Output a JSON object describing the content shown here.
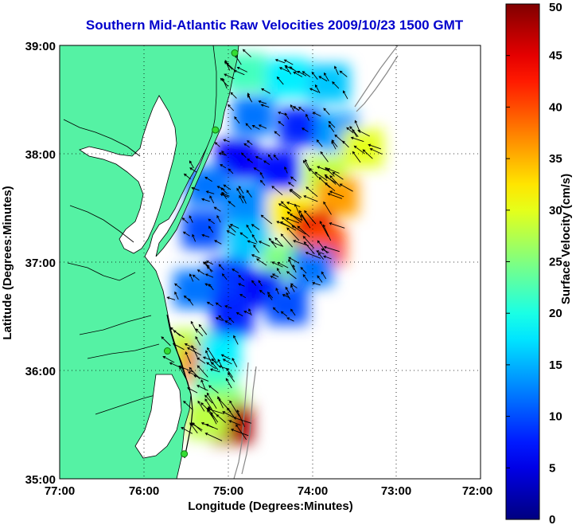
{
  "title": "Southern Mid-Atlantic Raw Velocities 2009/10/23 1500 GMT",
  "x_axis": {
    "label": "Longitude (Degrees:Minutes)",
    "ticks": [
      "77:00",
      "76:00",
      "75:00",
      "74:00",
      "73:00",
      "72:00"
    ],
    "range": [
      -77,
      -72
    ]
  },
  "y_axis": {
    "label": "Latitude (Degrees:Minutes)",
    "ticks": [
      "39:00",
      "38:00",
      "37:00",
      "36:00",
      "35:00"
    ],
    "range": [
      35,
      39
    ]
  },
  "colorbar": {
    "label": "Surface Velocity (cm/s)",
    "ticks": [
      "50",
      "45",
      "40",
      "35",
      "30",
      "25",
      "20",
      "15",
      "10",
      "5",
      "0"
    ],
    "range": [
      0,
      50
    ],
    "colormap": "jet"
  },
  "colors": {
    "land": "#55f2a4",
    "water": "#ffffff",
    "coastline": "#000000",
    "bathymetry": "#888888",
    "station": "#33dd33",
    "title": "#0000cc"
  },
  "grid": "dotted",
  "chart_data": {
    "type": "heatmap",
    "title": "Southern Mid-Atlantic Raw Velocities 2009/10/23 1500 GMT",
    "xlabel": "Longitude (Degrees:Minutes)",
    "ylabel": "Latitude (Degrees:Minutes)",
    "xlim": [
      -77,
      -72
    ],
    "ylim": [
      35,
      39
    ],
    "value_label": "Surface Velocity (cm/s)",
    "value_range": [
      0,
      50
    ],
    "stations": [
      {
        "lon": -74.92,
        "lat": 38.93
      },
      {
        "lon": -75.15,
        "lat": 38.22
      },
      {
        "lon": -75.72,
        "lat": 36.18
      },
      {
        "lon": -75.52,
        "lat": 35.23
      }
    ],
    "field_samples": [
      {
        "lon": -74.8,
        "lat": 38.75,
        "speed": 22
      },
      {
        "lon": -74.3,
        "lat": 38.7,
        "speed": 18
      },
      {
        "lon": -73.8,
        "lat": 38.65,
        "speed": 16
      },
      {
        "lon": -74.7,
        "lat": 38.35,
        "speed": 12
      },
      {
        "lon": -74.15,
        "lat": 38.25,
        "speed": 8
      },
      {
        "lon": -73.7,
        "lat": 38.2,
        "speed": 14
      },
      {
        "lon": -73.4,
        "lat": 38.05,
        "speed": 30
      },
      {
        "lon": -74.9,
        "lat": 37.95,
        "speed": 6
      },
      {
        "lon": -74.4,
        "lat": 37.85,
        "speed": 7
      },
      {
        "lon": -73.85,
        "lat": 37.8,
        "speed": 28
      },
      {
        "lon": -73.7,
        "lat": 37.6,
        "speed": 36
      },
      {
        "lon": -75.25,
        "lat": 37.7,
        "speed": 12
      },
      {
        "lon": -74.8,
        "lat": 37.55,
        "speed": 13
      },
      {
        "lon": -74.25,
        "lat": 37.45,
        "speed": 32
      },
      {
        "lon": -74.0,
        "lat": 37.3,
        "speed": 45
      },
      {
        "lon": -73.85,
        "lat": 37.15,
        "speed": 40
      },
      {
        "lon": -75.3,
        "lat": 37.3,
        "speed": 10
      },
      {
        "lon": -74.75,
        "lat": 37.2,
        "speed": 16
      },
      {
        "lon": -74.35,
        "lat": 37.0,
        "speed": 25
      },
      {
        "lon": -74.0,
        "lat": 36.95,
        "speed": 12
      },
      {
        "lon": -75.0,
        "lat": 36.85,
        "speed": 9
      },
      {
        "lon": -74.6,
        "lat": 36.75,
        "speed": 6
      },
      {
        "lon": -74.3,
        "lat": 36.6,
        "speed": 10
      },
      {
        "lon": -75.4,
        "lat": 36.75,
        "speed": 12
      },
      {
        "lon": -74.95,
        "lat": 36.5,
        "speed": 8
      },
      {
        "lon": -75.45,
        "lat": 36.2,
        "speed": 28
      },
      {
        "lon": -75.3,
        "lat": 36.05,
        "speed": 38
      },
      {
        "lon": -75.1,
        "lat": 36.15,
        "speed": 18
      },
      {
        "lon": -75.15,
        "lat": 35.85,
        "speed": 22
      },
      {
        "lon": -75.05,
        "lat": 35.65,
        "speed": 26
      },
      {
        "lon": -74.95,
        "lat": 35.5,
        "speed": 48
      },
      {
        "lon": -75.25,
        "lat": 35.55,
        "speed": 28
      }
    ]
  }
}
